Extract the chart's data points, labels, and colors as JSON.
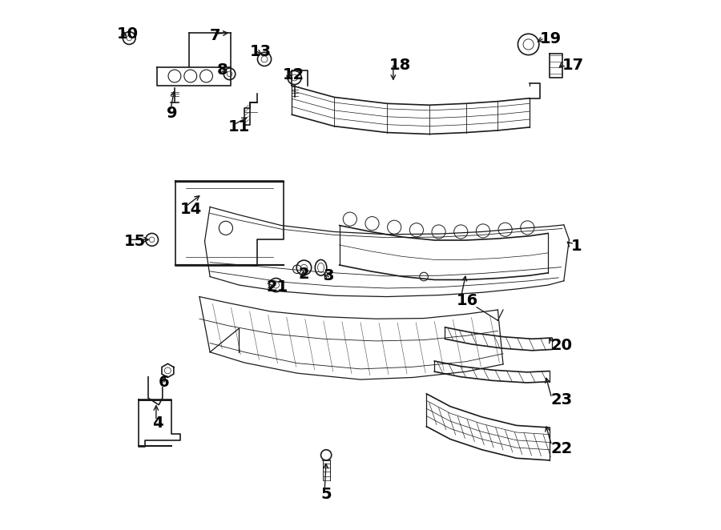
{
  "title": "",
  "bg_color": "#ffffff",
  "line_color": "#1a1a1a",
  "text_color": "#000000",
  "fig_width": 9.0,
  "fig_height": 6.62,
  "dpi": 100,
  "font_size_labels": 14
}
